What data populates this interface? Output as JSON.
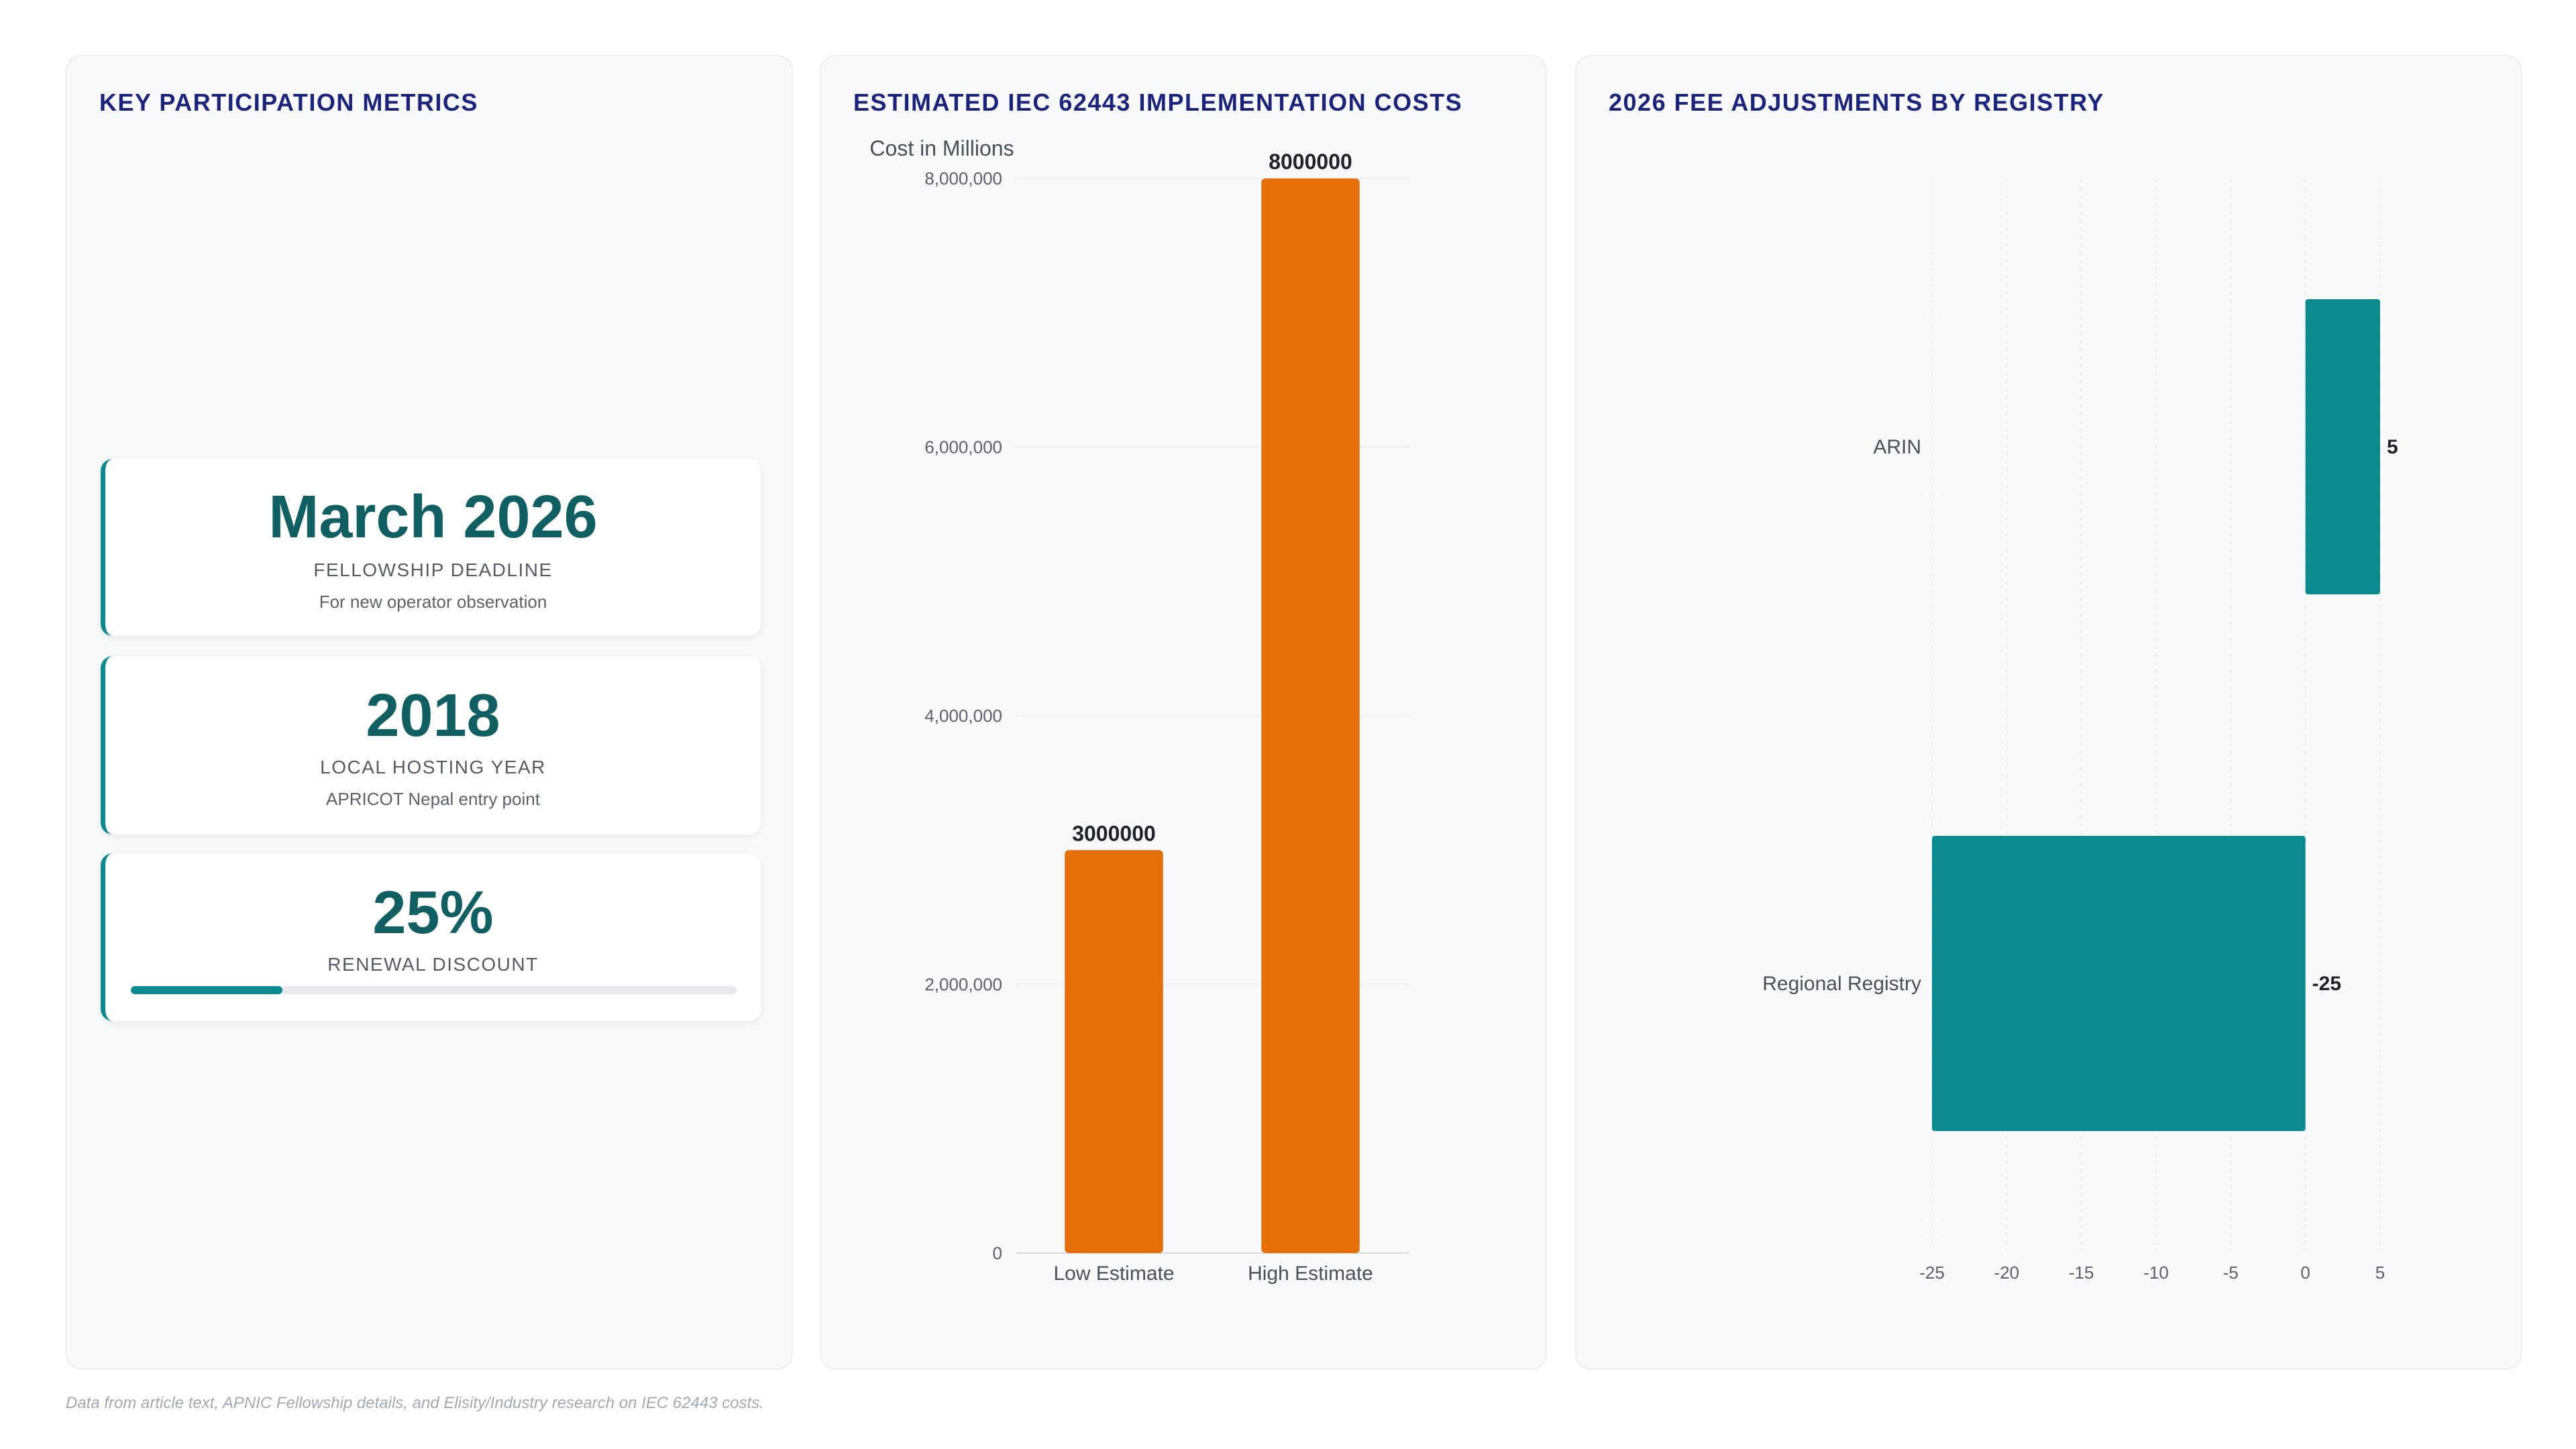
{
  "colors": {
    "accent": "#0b8a8f",
    "bar_orange": "#e56f0a",
    "title": "#1a237e"
  },
  "panels": {
    "metrics": {
      "title": "KEY PARTICIPATION METRICS",
      "cards": [
        {
          "value": "March 2026",
          "label": "FELLOWSHIP DEADLINE",
          "sub": "For new operator observation"
        },
        {
          "value": "2018",
          "label": "LOCAL HOSTING YEAR",
          "sub": "APRICOT Nepal entry point"
        },
        {
          "value": "25%",
          "label": "RENEWAL DISCOUNT",
          "progress": 0.25
        }
      ]
    },
    "costs": {
      "title": "ESTIMATED IEC 62443 IMPLEMENTATION COSTS"
    },
    "fees": {
      "title": "2026 FEE ADJUSTMENTS BY REGISTRY"
    }
  },
  "chart_data": [
    {
      "type": "bar",
      "title": "ESTIMATED IEC 62443 IMPLEMENTATION COSTS",
      "ylabel": "Cost in Millions",
      "categories": [
        "Low Estimate",
        "High Estimate"
      ],
      "values": [
        3000000,
        8000000
      ],
      "data_labels": [
        "3000000",
        "8000000"
      ],
      "ylim": [
        0,
        8000000
      ],
      "yticks": [
        0,
        2000000,
        4000000,
        6000000,
        8000000
      ],
      "ytick_labels": [
        "0",
        "2,000,000",
        "4,000,000",
        "6,000,000",
        "8,000,000"
      ],
      "grid": true,
      "color": "#e56f0a"
    },
    {
      "type": "bar",
      "orientation": "horizontal",
      "title": "2026 FEE ADJUSTMENTS BY REGISTRY",
      "categories": [
        "ARIN",
        "Regional Registry"
      ],
      "values": [
        5,
        -25
      ],
      "data_labels": [
        "5",
        "-25"
      ],
      "xlim": [
        -25,
        5
      ],
      "xticks": [
        -25,
        -20,
        -15,
        -10,
        -5,
        0,
        5
      ],
      "xtick_labels": [
        "-25",
        "-20",
        "-15",
        "-10",
        "-5",
        "0",
        "5"
      ],
      "grid": true,
      "color": "#0b8a8f"
    }
  ],
  "footer": "Data from article text, APNIC Fellowship details, and Elisity/Industry research on IEC 62443 costs."
}
